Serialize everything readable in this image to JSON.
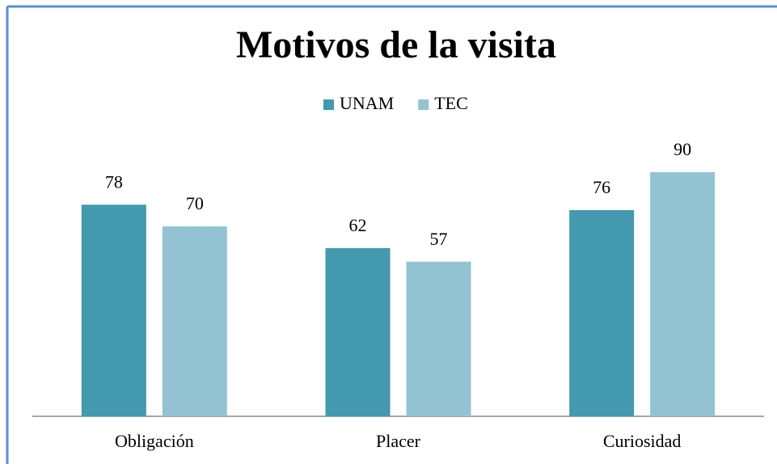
{
  "chart_data": {
    "type": "bar",
    "title": "Motivos de la visita",
    "categories": [
      "Obligación",
      "Placer",
      "Curiosidad"
    ],
    "series": [
      {
        "name": "UNAM",
        "color": "#4399ae",
        "values": [
          78,
          62,
          76
        ]
      },
      {
        "name": "TEC",
        "color": "#93c3d3",
        "values": [
          70,
          57,
          90
        ]
      }
    ]
  }
}
